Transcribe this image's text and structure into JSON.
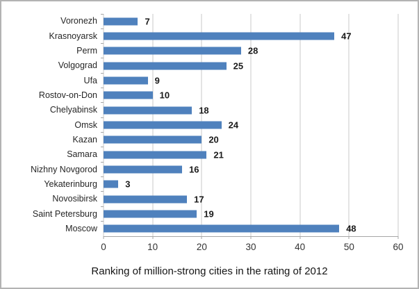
{
  "chart_data": {
    "type": "bar",
    "orientation": "horizontal",
    "title": "Ranking of million-strong cities in the rating of 2012",
    "categories": [
      "Voronezh",
      "Krasnoyarsk",
      "Perm",
      "Volgograd",
      "Ufa",
      "Rostov-on-Don",
      "Chelyabinsk",
      "Omsk",
      "Kazan",
      "Samara",
      "Nizhny Novgorod",
      "Yekaterinburg",
      "Novosibirsk",
      "Saint Petersburg",
      "Moscow"
    ],
    "values": [
      7,
      47,
      28,
      25,
      9,
      10,
      18,
      24,
      20,
      21,
      16,
      3,
      17,
      19,
      48
    ],
    "xlim": [
      0,
      60
    ],
    "xticks": [
      0,
      10,
      20,
      30,
      40,
      50,
      60
    ],
    "grid": true,
    "legend": false,
    "data_labels": true,
    "bar_color": "#4f81bd",
    "gridline_color": "#c9c9c9",
    "axis_color": "#a6a6a6",
    "text_color": "#262626"
  }
}
